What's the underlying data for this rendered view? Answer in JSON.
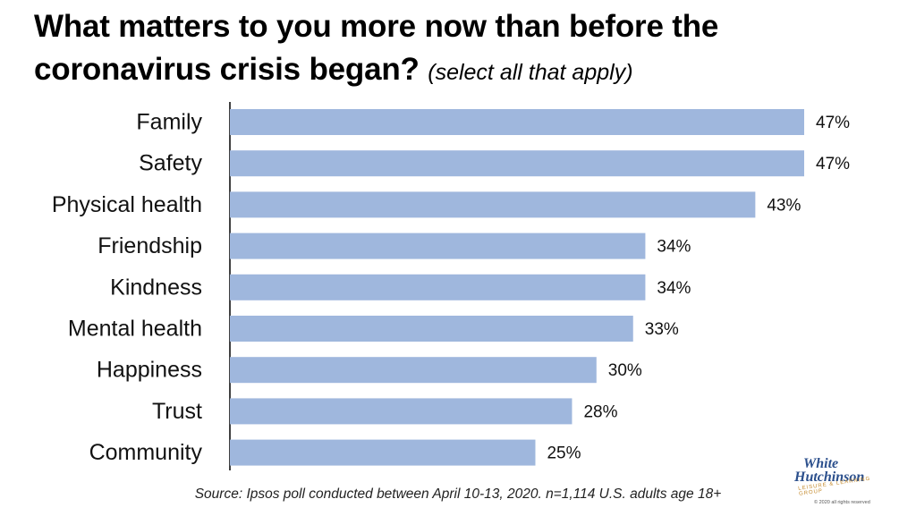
{
  "title": {
    "main": "What matters to you more now than before the coronavirus crisis began?",
    "note": "(select all that apply)"
  },
  "source": "Source: Ipsos poll conducted between April 10-13, 2020. n=1,114 U.S. adults age 18+",
  "logo": {
    "line1": "White",
    "line2": "Hutchinson",
    "line3": "LEISURE & LEARNING GROUP",
    "line4": "© 2020 all rights reserved"
  },
  "colors": {
    "bar": "#9fb7dd",
    "axis": "#000000",
    "logo_blue": "#2b4f8c",
    "logo_gold": "#c48a2c"
  },
  "chart_data": {
    "type": "bar",
    "orientation": "horizontal",
    "categories": [
      "Family",
      "Safety",
      "Physical health",
      "Friendship",
      "Kindness",
      "Mental health",
      "Happiness",
      "Trust",
      "Community"
    ],
    "values": [
      47,
      47,
      43,
      34,
      34,
      33,
      30,
      28,
      25
    ],
    "value_labels": [
      "47%",
      "47%",
      "43%",
      "34%",
      "34%",
      "33%",
      "30%",
      "28%",
      "25%"
    ],
    "xlim": [
      0,
      47
    ],
    "grid": false,
    "legend": "none"
  }
}
